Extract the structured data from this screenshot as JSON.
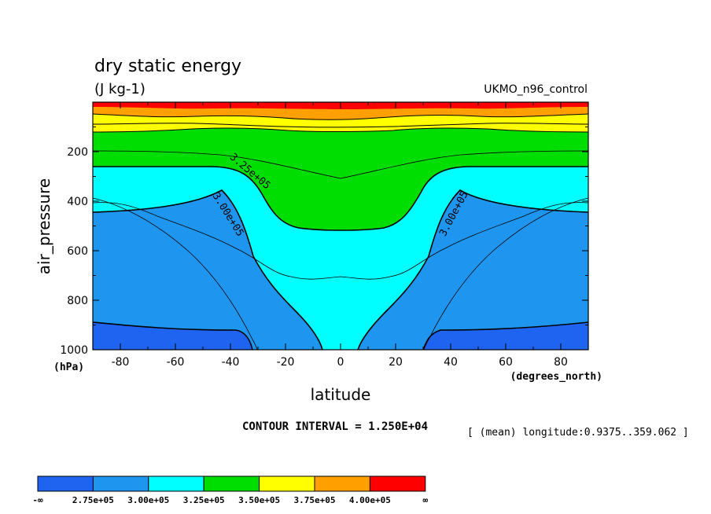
{
  "chart_data": {
    "type": "heatmap",
    "title": "dry static energy",
    "units": "(J kg-1)",
    "dataset": "UKMO_n96_control",
    "xlabel": "latitude",
    "xunits": "(degrees_north)",
    "ylabel": "air_pressure",
    "yunits": "(hPa)",
    "xlim": [
      -90,
      90
    ],
    "ylim": [
      1000,
      0
    ],
    "x_ticks": [
      -80,
      -60,
      -40,
      -20,
      0,
      20,
      40,
      60,
      80
    ],
    "x_tick_labels": [
      "-80",
      "-60",
      "-40",
      "-20",
      "0",
      "20",
      "40",
      "60",
      "80"
    ],
    "y_ticks": [
      200,
      400,
      600,
      800,
      1000
    ],
    "y_tick_labels": [
      "200",
      "400",
      "600",
      "800",
      "1000"
    ],
    "contour_interval_text": "CONTOUR INTERVAL = 1.250E+04",
    "mean_text": "[ (mean) longitude:0.9375..359.062 ]",
    "levels": [
      275000,
      300000,
      325000,
      350000,
      375000,
      400000
    ],
    "colorbar": {
      "labels": [
        "-∞",
        "2.75e+05",
        "3.00e+05",
        "3.25e+05",
        "3.50e+05",
        "3.75e+05",
        "4.00e+05",
        "∞"
      ],
      "colors": [
        "#1e64f0",
        "#1e96f0",
        "#00ffff",
        "#00dd00",
        "#ffff00",
        "#ffa000",
        "#ff0000"
      ]
    },
    "contour_labels": [
      "3.25e+05",
      "3.00e+05",
      "3.00e+05"
    ],
    "contours": [
      {
        "level": 275000,
        "latitude": [
          -90,
          -60,
          -40,
          -34,
          -32
        ],
        "pressure": [
          900,
          912,
          922,
          950,
          1000
        ]
      },
      {
        "level": 275000,
        "latitude": [
          32,
          34,
          40,
          60,
          90
        ],
        "pressure": [
          1000,
          950,
          922,
          912,
          900
        ]
      },
      {
        "level": 300000,
        "latitude": [
          -90,
          -60,
          -45,
          -35,
          -28,
          -18,
          -10,
          -5
        ],
        "pressure": [
          270,
          285,
          390,
          600,
          780,
          860,
          930,
          1000
        ]
      },
      {
        "level": 300000,
        "latitude": [
          5,
          10,
          18,
          28,
          35,
          45,
          60,
          90
        ],
        "pressure": [
          1000,
          930,
          860,
          780,
          600,
          390,
          285,
          270
        ]
      },
      {
        "level": 312500,
        "latitude": [
          -90,
          -80,
          -60,
          -40,
          -30,
          -25,
          -15,
          -5,
          0,
          5,
          15,
          25,
          30,
          40,
          60,
          80,
          90
        ],
        "pressure": [
          400,
          405,
          510,
          700,
          880,
          970,
          1000,
          1000,
          1000,
          1000,
          1000,
          970,
          880,
          700,
          510,
          405,
          400
        ]
      },
      {
        "level": 325000,
        "latitude": [
          -90,
          -60,
          -45,
          -40,
          -35,
          -28,
          -20,
          -10,
          0,
          10,
          20,
          28,
          35,
          40,
          45,
          60,
          90
        ],
        "pressure": [
          215,
          215,
          220,
          240,
          320,
          460,
          520,
          560,
          570,
          560,
          520,
          460,
          320,
          240,
          220,
          215,
          215
        ]
      },
      {
        "level": 337500,
        "latitude": [
          -90,
          -60,
          -40,
          -20,
          0,
          20,
          40,
          60,
          90
        ],
        "pressure": [
          192,
          192,
          200,
          220,
          235,
          220,
          200,
          192,
          192
        ]
      },
      {
        "level": 350000,
        "latitude": [
          -90,
          -60,
          -40,
          -20,
          0,
          20,
          40,
          60,
          90
        ],
        "pressure": [
          168,
          168,
          165,
          168,
          170,
          168,
          165,
          168,
          168
        ]
      }
    ]
  }
}
